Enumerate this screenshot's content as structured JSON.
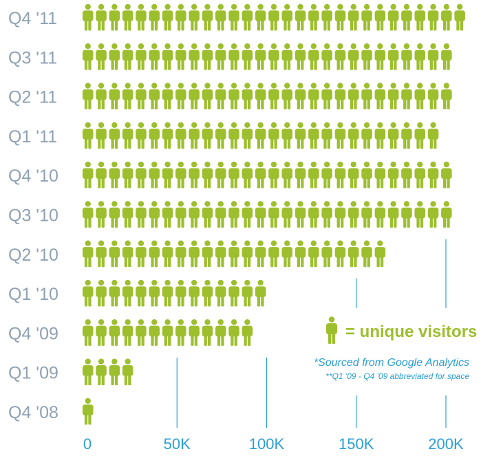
{
  "chart_data": {
    "type": "bar",
    "orientation": "horizontal",
    "categories": [
      "Q4 '11",
      "Q3 '11",
      "Q2 '11",
      "Q1 '11",
      "Q4 '10",
      "Q3 '10",
      "Q2 '10",
      "Q1 '10",
      "Q4 '09",
      "Q1 '09",
      "Q4 '08"
    ],
    "values": [
      214000,
      208000,
      208000,
      198000,
      208000,
      208000,
      168000,
      104000,
      96000,
      28000,
      7000
    ],
    "xlim": [
      0,
      220000
    ],
    "x_ticks": [
      {
        "value": 0,
        "label": "0"
      },
      {
        "value": 50000,
        "label": "50K"
      },
      {
        "value": 100000,
        "label": "100K"
      },
      {
        "value": 150000,
        "label": "150K"
      },
      {
        "value": 200000,
        "label": "200K"
      }
    ],
    "mark_icon": "person-icon",
    "legend": {
      "icon": "person-icon",
      "text": "= unique visitors"
    },
    "notes": [
      "*Sourced from Google Analytics",
      "**Q1 '09 - Q4 '09 abbreviated for space"
    ],
    "colors": {
      "bar": "#9dbf2e",
      "category": "#8fa1b3",
      "axis": "#2a9fd6"
    }
  }
}
